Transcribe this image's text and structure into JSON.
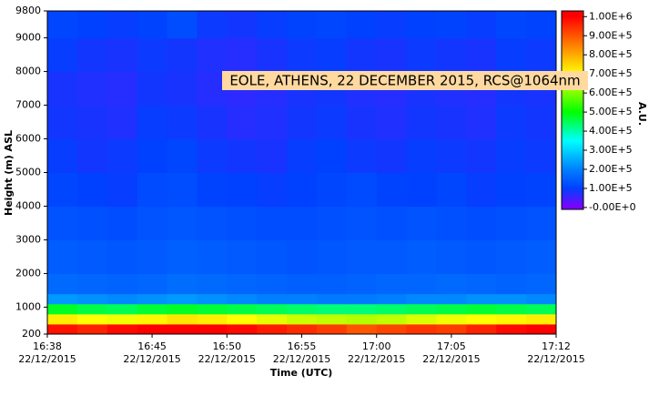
{
  "chart_data": {
    "type": "heatmap",
    "annotation": "EOLE, ATHENS, 22 DECEMBER 2015, RCS@1064nm",
    "y_label": "Height (m) ASL",
    "x_label": "Time (UTC)",
    "colorbar_label": "A.U.",
    "x": [
      "16:38",
      "16:40",
      "16:42",
      "16:44",
      "16:46",
      "16:48",
      "16:50",
      "16:52",
      "16:54",
      "16:56",
      "16:58",
      "17:00",
      "17:02",
      "17:04",
      "17:06",
      "17:08",
      "17:10"
    ],
    "xlim": [
      "16:38",
      "17:12"
    ],
    "xticks": [
      {
        "value": "16:38",
        "label": [
          "16:38",
          "22/12/2015"
        ]
      },
      {
        "value": "16:45",
        "label": [
          "16:45",
          "22/12/2015"
        ]
      },
      {
        "value": "16:50",
        "label": [
          "16:50",
          "22/12/2015"
        ]
      },
      {
        "value": "16:55",
        "label": [
          "16:55",
          "22/12/2015"
        ]
      },
      {
        "value": "17:00",
        "label": [
          "17:00",
          "22/12/2015"
        ]
      },
      {
        "value": "17:05",
        "label": [
          "17:05",
          "22/12/2015"
        ]
      },
      {
        "value": "17:12",
        "label": [
          "17:12",
          "22/12/2015"
        ]
      }
    ],
    "y_bins": [
      200,
      500,
      800,
      1100,
      1400,
      2000,
      3000,
      4000,
      5000,
      6000,
      7000,
      8000,
      9000,
      9800
    ],
    "ylim": [
      200,
      9800
    ],
    "yticks": [
      200,
      1000,
      2000,
      3000,
      4000,
      5000,
      6000,
      7000,
      8000,
      9000,
      9800
    ],
    "z": [
      [
        980000,
        960000,
        990000,
        1000000,
        1010000,
        1000000,
        990000,
        970000,
        950000,
        930000,
        900000,
        920000,
        940000,
        930000,
        960000,
        990000,
        1000000
      ],
      [
        720000,
        700000,
        690000,
        710000,
        730000,
        720000,
        700000,
        680000,
        660000,
        650000,
        640000,
        650000,
        670000,
        690000,
        700000,
        710000,
        720000
      ],
      [
        480000,
        460000,
        450000,
        470000,
        480000,
        470000,
        460000,
        450000,
        440000,
        430000,
        430000,
        440000,
        450000,
        460000,
        470000,
        460000,
        450000
      ],
      [
        230000,
        220000,
        210000,
        220000,
        230000,
        220000,
        210000,
        200000,
        200000,
        190000,
        190000,
        200000,
        210000,
        210000,
        220000,
        220000,
        210000
      ],
      [
        165000,
        160000,
        155000,
        160000,
        170000,
        165000,
        160000,
        155000,
        150000,
        150000,
        155000,
        160000,
        160000,
        165000,
        160000,
        155000,
        160000
      ],
      [
        145000,
        140000,
        135000,
        140000,
        150000,
        145000,
        140000,
        135000,
        130000,
        135000,
        140000,
        140000,
        145000,
        140000,
        135000,
        140000,
        145000
      ],
      [
        130000,
        125000,
        120000,
        130000,
        135000,
        130000,
        125000,
        120000,
        120000,
        125000,
        130000,
        125000,
        130000,
        125000,
        120000,
        125000,
        130000
      ],
      [
        110000,
        100000,
        95000,
        115000,
        120000,
        105000,
        100000,
        95000,
        100000,
        110000,
        115000,
        105000,
        100000,
        110000,
        95000,
        100000,
        105000
      ],
      [
        95000,
        85000,
        90000,
        100000,
        110000,
        90000,
        85000,
        80000,
        95000,
        100000,
        90000,
        85000,
        95000,
        90000,
        85000,
        95000,
        90000
      ],
      [
        85000,
        80000,
        75000,
        95000,
        90000,
        80000,
        70000,
        75000,
        85000,
        90000,
        80000,
        75000,
        85000,
        80000,
        75000,
        90000,
        85000
      ],
      [
        80000,
        75000,
        70000,
        85000,
        80000,
        70000,
        65000,
        70000,
        80000,
        85000,
        75000,
        70000,
        80000,
        75000,
        70000,
        85000,
        80000
      ],
      [
        95000,
        85000,
        80000,
        90000,
        85000,
        75000,
        70000,
        80000,
        90000,
        95000,
        85000,
        80000,
        90000,
        85000,
        80000,
        95000,
        90000
      ],
      [
        110000,
        100000,
        95000,
        105000,
        120000,
        90000,
        85000,
        95000,
        105000,
        110000,
        100000,
        95000,
        100000,
        105000,
        95000,
        110000,
        105000
      ]
    ],
    "clim": [
      -10000,
      1030000
    ],
    "colorscale": [
      [
        0,
        "#7f00ff"
      ],
      [
        100000,
        "#0040ff"
      ],
      [
        200000,
        "#0080ff"
      ],
      [
        350000,
        "#00ffff"
      ],
      [
        500000,
        "#00ff00"
      ],
      [
        700000,
        "#ffff00"
      ],
      [
        850000,
        "#ff8000"
      ],
      [
        1000000,
        "#ff0000"
      ]
    ],
    "cticks": [
      {
        "value": 1000000,
        "label": "1.00E+6"
      },
      {
        "value": 900000,
        "label": "9.00E+5"
      },
      {
        "value": 800000,
        "label": "8.00E+5"
      },
      {
        "value": 700000,
        "label": "7.00E+5"
      },
      {
        "value": 600000,
        "label": "6.00E+5"
      },
      {
        "value": 500000,
        "label": "5.00E+5"
      },
      {
        "value": 400000,
        "label": "4.00E+5"
      },
      {
        "value": 300000,
        "label": "3.00E+5"
      },
      {
        "value": 200000,
        "label": "2.00E+5"
      },
      {
        "value": 100000,
        "label": "1.00E+5"
      },
      {
        "value": 0,
        "label": "-0.00E+0"
      }
    ]
  }
}
